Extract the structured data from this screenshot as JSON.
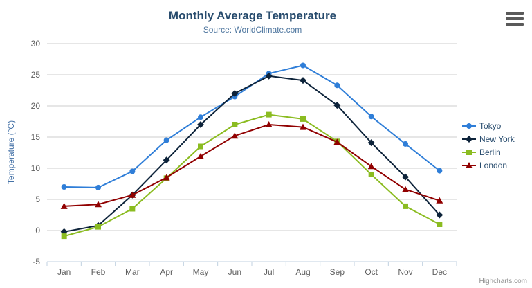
{
  "header": {
    "title": "Monthly Average Temperature",
    "subtitle": "Source: WorldClimate.com"
  },
  "credits": "Highcharts.com",
  "chart_data": {
    "type": "line",
    "title": "Monthly Average Temperature",
    "subtitle": "Source: WorldClimate.com",
    "xlabel": "",
    "ylabel": "Temperature (°C)",
    "ylim": [
      -5,
      30
    ],
    "tick_interval": 5,
    "yticks": [
      -5,
      0,
      5,
      10,
      15,
      20,
      25,
      30
    ],
    "grid": true,
    "legend_position": "right",
    "categories": [
      "Jan",
      "Feb",
      "Mar",
      "Apr",
      "May",
      "Jun",
      "Jul",
      "Aug",
      "Sep",
      "Oct",
      "Nov",
      "Dec"
    ],
    "series": [
      {
        "name": "Tokyo",
        "color": "#2f7ed8",
        "marker": "circle",
        "values": [
          7.0,
          6.9,
          9.5,
          14.5,
          18.2,
          21.5,
          25.2,
          26.5,
          23.3,
          18.3,
          13.9,
          9.6
        ]
      },
      {
        "name": "New York",
        "color": "#0d233a",
        "marker": "diamond",
        "values": [
          -0.2,
          0.8,
          5.7,
          11.3,
          17.0,
          22.0,
          24.8,
          24.1,
          20.1,
          14.1,
          8.6,
          2.5
        ]
      },
      {
        "name": "Berlin",
        "color": "#8bbc21",
        "marker": "square",
        "values": [
          -0.9,
          0.6,
          3.5,
          8.4,
          13.5,
          17.0,
          18.6,
          17.9,
          14.3,
          9.0,
          3.9,
          1.0
        ]
      },
      {
        "name": "London",
        "color": "#910000",
        "marker": "triangle",
        "values": [
          3.9,
          4.2,
          5.7,
          8.5,
          11.9,
          15.2,
          17.0,
          16.6,
          14.2,
          10.3,
          6.6,
          4.8
        ]
      }
    ]
  },
  "colors": {
    "title": "#274b6d",
    "subtitle": "#4d759e",
    "axis_title": "#4572a7",
    "axis_labels": "#606060",
    "grid": "#cccccc",
    "axis_line": "#c0d0e0",
    "legend_text": "#274b6d",
    "credits": "#909090"
  }
}
